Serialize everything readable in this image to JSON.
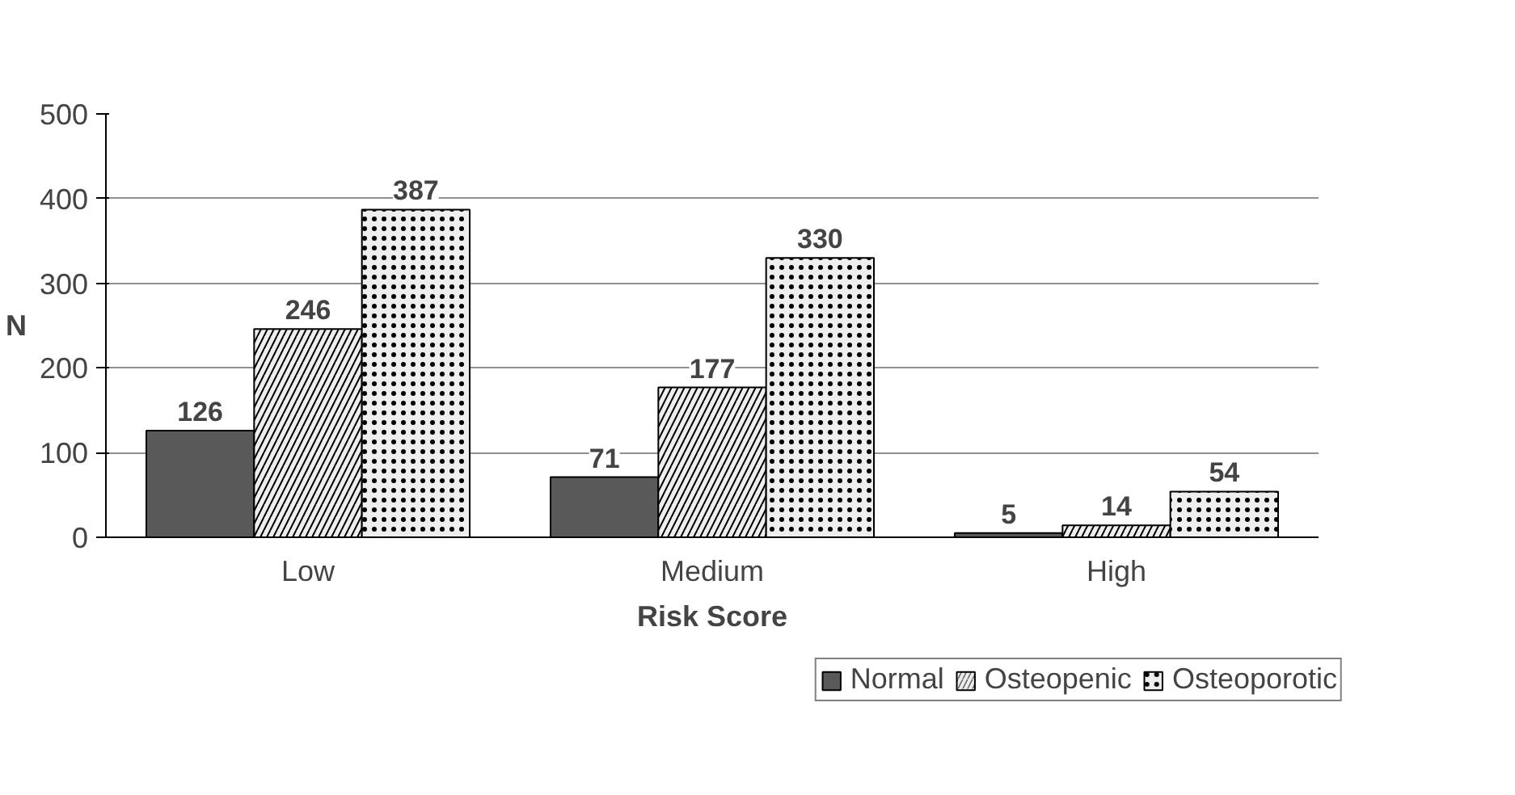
{
  "chart_data": {
    "type": "bar",
    "xlabel": "Risk Score",
    "ylabel": "N",
    "categories": [
      "Low",
      "Medium",
      "High"
    ],
    "series": [
      {
        "name": "Normal",
        "color": "#595959",
        "values": [
          126,
          71,
          5
        ]
      },
      {
        "name": "Osteopenic",
        "color": "#eeeeee",
        "values": [
          246,
          177,
          14
        ]
      },
      {
        "name": "Osteoporotic",
        "color": "#eeeeee",
        "values": [
          387,
          330,
          54
        ]
      }
    ],
    "ylim": [
      0,
      500
    ],
    "yticks": [
      0,
      100,
      200,
      300,
      400,
      500
    ],
    "grid": "y",
    "legend": "bottom right",
    "data_labels": true
  }
}
